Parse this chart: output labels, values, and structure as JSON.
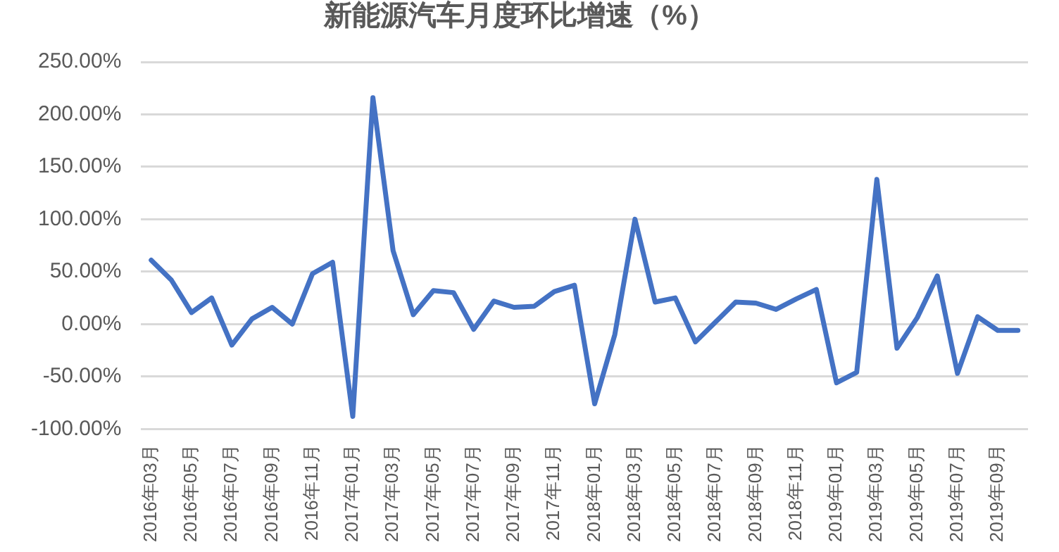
{
  "chart_data": {
    "type": "line",
    "title": "新能源汽车月度环比增速（%）",
    "categories": [
      "2016年03月",
      null,
      "2016年05月",
      null,
      "2016年07月",
      null,
      "2016年09月",
      null,
      "2016年11月",
      null,
      "2017年01月",
      null,
      "2017年03月",
      null,
      "2017年05月",
      null,
      "2017年07月",
      null,
      "2017年09月",
      null,
      "2017年11月",
      null,
      "2018年01月",
      null,
      "2018年03月",
      null,
      "2018年05月",
      null,
      "2018年07月",
      null,
      "2018年09月",
      null,
      "2018年11月",
      null,
      "2019年01月",
      null,
      "2019年03月",
      null,
      "2019年05月",
      null,
      "2019年07月",
      null,
      "2019年09月",
      null
    ],
    "series": [
      {
        "color": "#4472c4",
        "values": [
          61,
          42,
          11,
          25,
          -20,
          5,
          16,
          0,
          48,
          59,
          -88,
          216,
          70,
          9,
          32,
          30,
          -5,
          22,
          16,
          17,
          31,
          37,
          -76,
          -10,
          100,
          21,
          25,
          -17,
          2,
          21,
          20,
          14,
          24,
          33,
          -56,
          -46,
          138,
          -23,
          6,
          46,
          -47,
          7,
          -6,
          -6
        ]
      }
    ],
    "ylim": [
      -100,
      250
    ],
    "yticks": [
      {
        "value": -100,
        "label": "-100.00%"
      },
      {
        "value": -50,
        "label": "-50.00%"
      },
      {
        "value": 0,
        "label": "0.00%"
      },
      {
        "value": 50,
        "label": "50.00%"
      },
      {
        "value": 100,
        "label": "100.00%"
      },
      {
        "value": 150,
        "label": "150.00%"
      },
      {
        "value": 200,
        "label": "200.00%"
      },
      {
        "value": 250,
        "label": "250.00%"
      }
    ],
    "grid": "y",
    "legend": false,
    "marker": "none",
    "line_style": "solid"
  }
}
